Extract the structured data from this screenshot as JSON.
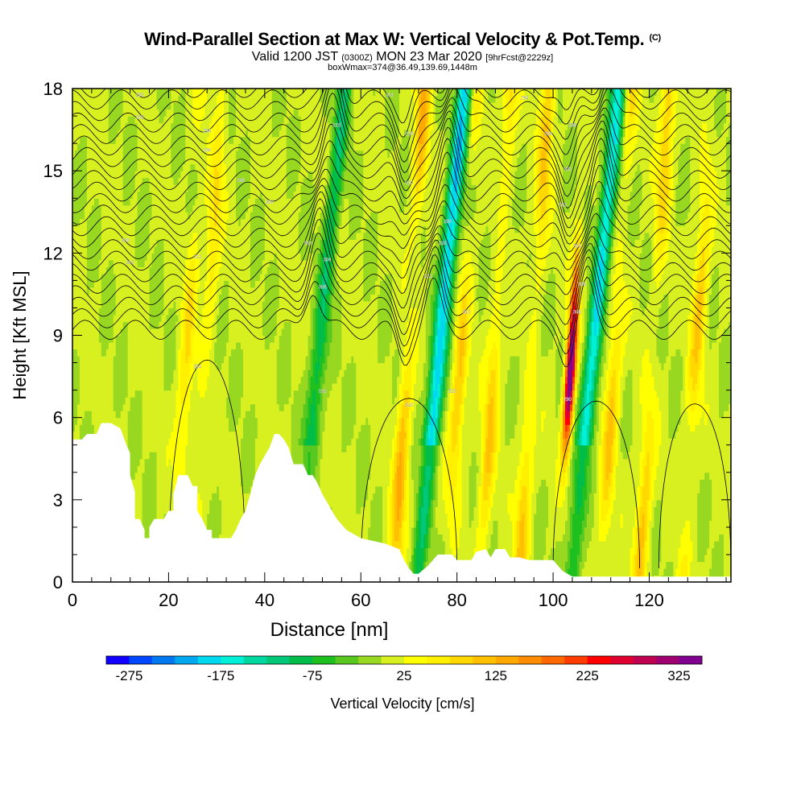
{
  "title": "Wind-Parallel Section at Max W: Vertical Velocity & Pot.Temp.",
  "title_mark": "(C)",
  "subtitle_main": "Valid 1200 JST",
  "subtitle_utc": "(0300Z)",
  "subtitle_date": "MON 23 Mar 2020",
  "subtitle_fcst": "[9hrFcst@2229z]",
  "subtitle2": "boxWmax=374@36.49,139.69,1448m",
  "chart_data": {
    "type": "heatmap",
    "xlabel": "Distance [nm]",
    "ylabel": "Height [Kft MSL]",
    "xlim": [
      0,
      137
    ],
    "ylim": [
      0,
      18
    ],
    "x_ticks": [
      "0",
      "20",
      "40",
      "60",
      "80",
      "100",
      "120"
    ],
    "y_ticks": [
      "0",
      "3",
      "6",
      "9",
      "12",
      "15",
      "18"
    ],
    "colorbar": {
      "label": "Vertical Velocity [cm/s]",
      "tick_labels": [
        "-275",
        "-175",
        "-75",
        "25",
        "125",
        "225",
        "325"
      ],
      "colors": [
        "#1200ff",
        "#0048ff",
        "#0078f0",
        "#00a8f0",
        "#00d8f0",
        "#00f0d8",
        "#00d8a0",
        "#00c878",
        "#00bc48",
        "#1ec020",
        "#58c820",
        "#98d820",
        "#d8f020",
        "#ffff00",
        "#fff000",
        "#ffd800",
        "#ffc000",
        "#ffa800",
        "#ff8c00",
        "#ff6800",
        "#ff3c00",
        "#ff0000",
        "#e00030",
        "#c00050",
        "#a00070",
        "#800090"
      ]
    },
    "terrain": [
      [
        0,
        5.2
      ],
      [
        2,
        5.2
      ],
      [
        3,
        5.4
      ],
      [
        5,
        5.4
      ],
      [
        6,
        5.8
      ],
      [
        8,
        5.8
      ],
      [
        10,
        5.6
      ],
      [
        11,
        5.1
      ],
      [
        12,
        4.7
      ],
      [
        12,
        3.9
      ],
      [
        13,
        3.3
      ],
      [
        13,
        2.3
      ],
      [
        14,
        2.3
      ],
      [
        15,
        1.9
      ],
      [
        15,
        1.6
      ],
      [
        16,
        1.6
      ],
      [
        16,
        2.0
      ],
      [
        17,
        2.3
      ],
      [
        19,
        2.3
      ],
      [
        20,
        2.6
      ],
      [
        21,
        2.6
      ],
      [
        21,
        3.2
      ],
      [
        22,
        3.9
      ],
      [
        24,
        3.9
      ],
      [
        25,
        3.5
      ],
      [
        26,
        3.5
      ],
      [
        26,
        2.6
      ],
      [
        27,
        2.3
      ],
      [
        28,
        1.9
      ],
      [
        29,
        1.9
      ],
      [
        29,
        1.6
      ],
      [
        33,
        1.6
      ],
      [
        34,
        1.9
      ],
      [
        35,
        2.3
      ],
      [
        36,
        2.6
      ],
      [
        37,
        3.2
      ],
      [
        38,
        3.9
      ],
      [
        39,
        4.3
      ],
      [
        40,
        4.6
      ],
      [
        41,
        4.9
      ],
      [
        42,
        5.4
      ],
      [
        43,
        5.4
      ],
      [
        44,
        5.2
      ],
      [
        45,
        4.9
      ],
      [
        46,
        4.3
      ],
      [
        47,
        4.3
      ],
      [
        48,
        4.3
      ],
      [
        49,
        3.9
      ],
      [
        50,
        3.9
      ],
      [
        51,
        3.6
      ],
      [
        52,
        3.2
      ],
      [
        53,
        2.9
      ],
      [
        54,
        2.6
      ],
      [
        55,
        2.3
      ],
      [
        57,
        1.9
      ],
      [
        60,
        1.6
      ],
      [
        65,
        1.4
      ],
      [
        68,
        1.2
      ],
      [
        69,
        0.8
      ],
      [
        70,
        0.5
      ],
      [
        71,
        0.3
      ],
      [
        72,
        0.3
      ],
      [
        74,
        0.6
      ],
      [
        76,
        1.0
      ],
      [
        79,
        1.0
      ],
      [
        80,
        0.8
      ],
      [
        83,
        0.8
      ],
      [
        84,
        1.1
      ],
      [
        86,
        1.2
      ],
      [
        87,
        0.9
      ],
      [
        88,
        1.2
      ],
      [
        90,
        1.2
      ],
      [
        91,
        0.9
      ],
      [
        93,
        0.9
      ],
      [
        95,
        0.8
      ],
      [
        100,
        0.8
      ],
      [
        102,
        0.4
      ],
      [
        104,
        0.2
      ],
      [
        110,
        0.2
      ],
      [
        120,
        0.2
      ],
      [
        130,
        0.2
      ],
      [
        137,
        0.2
      ]
    ],
    "updraft_bands": [
      {
        "x": 23,
        "value": 75
      },
      {
        "x": 27,
        "value": 75
      },
      {
        "x": 69,
        "value": 125
      },
      {
        "x": 80,
        "value": 100
      },
      {
        "x": 87,
        "value": 100
      },
      {
        "x": 95,
        "value": 100
      },
      {
        "x": 103,
        "value": 374
      },
      {
        "x": 112,
        "value": 100
      },
      {
        "x": 120,
        "value": 100
      },
      {
        "x": 129,
        "value": 100
      }
    ],
    "downdraft_bands": [
      {
        "x": 50,
        "value": -100
      },
      {
        "x": 75,
        "value": -200
      },
      {
        "x": 107,
        "value": -175
      }
    ],
    "theta_contour_labels": [
      "290",
      "292",
      "294",
      "296",
      "298",
      "300",
      "302",
      "304",
      "306",
      "308",
      "310",
      "312",
      "314",
      "316",
      "318",
      "320"
    ]
  }
}
